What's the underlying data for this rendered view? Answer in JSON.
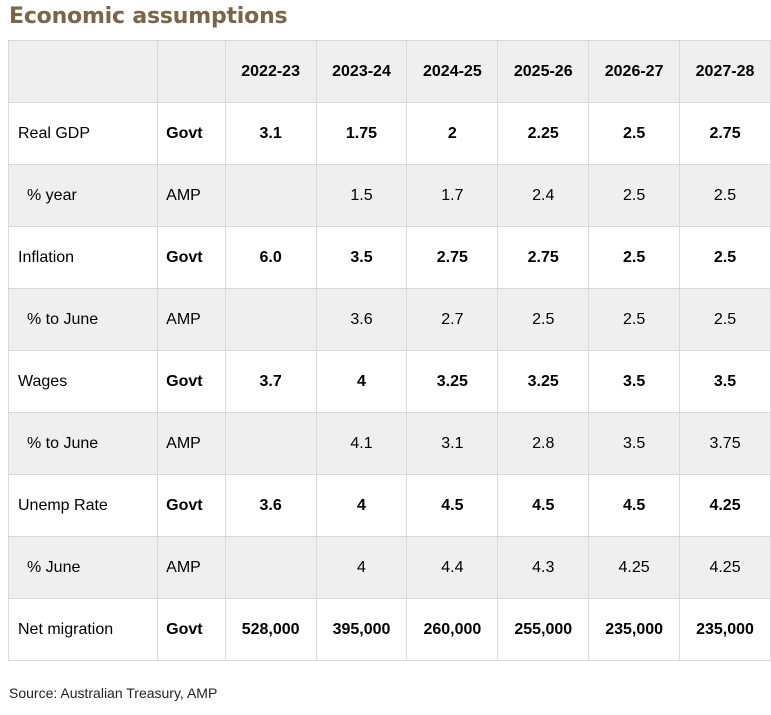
{
  "title": "Economic assumptions",
  "header": {
    "label": "",
    "source": "",
    "years": [
      "2022-23",
      "2023-24",
      "2024-25",
      "2025-26",
      "2026-27",
      "2027-28"
    ]
  },
  "rows": [
    {
      "label": "Real GDP",
      "source": "Govt",
      "values": [
        "3.1",
        "1.75",
        "2",
        "2.25",
        "2.5",
        "2.75"
      ]
    },
    {
      "label": "% year",
      "source": "AMP",
      "values": [
        "",
        "1.5",
        "1.7",
        "2.4",
        "2.5",
        "2.5"
      ]
    },
    {
      "label": "Inflation",
      "source": "Govt",
      "values": [
        "6.0",
        "3.5",
        "2.75",
        "2.75",
        "2.5",
        "2.5"
      ]
    },
    {
      "label": "% to June",
      "source": "AMP",
      "values": [
        "",
        "3.6",
        "2.7",
        "2.5",
        "2.5",
        "2.5"
      ]
    },
    {
      "label": "Wages",
      "source": "Govt",
      "values": [
        "3.7",
        "4",
        "3.25",
        "3.25",
        "3.5",
        "3.5"
      ]
    },
    {
      "label": "% to June",
      "source": "AMP",
      "values": [
        "",
        "4.1",
        "3.1",
        "2.8",
        "3.5",
        "3.75"
      ]
    },
    {
      "label": "Unemp Rate",
      "source": "Govt",
      "values": [
        "3.6",
        "4",
        "4.5",
        "4.5",
        "4.5",
        "4.25"
      ]
    },
    {
      "label": "% June",
      "source": "AMP",
      "values": [
        "",
        "4",
        "4.4",
        "4.3",
        "4.25",
        "4.25"
      ]
    },
    {
      "label": "Net migration",
      "source": "Govt",
      "values": [
        "528,000",
        "395,000",
        "260,000",
        "255,000",
        "235,000",
        "235,000"
      ]
    }
  ],
  "footer": {
    "source": "Source: Australian Treasury, AMP"
  }
}
